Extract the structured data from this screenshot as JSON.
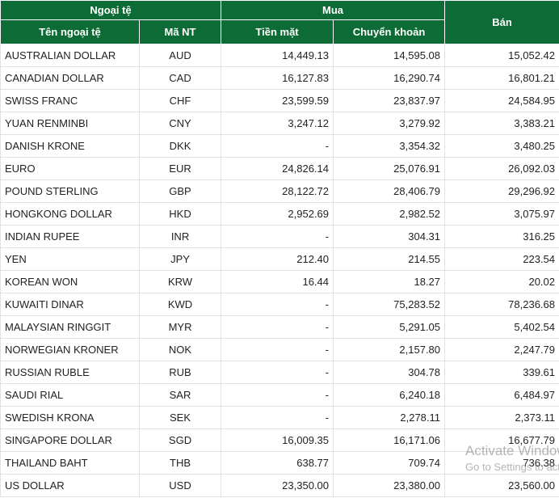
{
  "header": {
    "group_foreign": "Ngoại tệ",
    "group_buy": "Mua",
    "sell": "Bán",
    "name": "Tên ngoại tệ",
    "code": "Mã NT",
    "cash": "Tiền mặt",
    "transfer": "Chuyển khoản"
  },
  "table": {
    "rows": [
      [
        "AUSTRALIAN DOLLAR",
        "AUD",
        "14,449.13",
        "14,595.08",
        "15,052.42"
      ],
      [
        "CANADIAN DOLLAR",
        "CAD",
        "16,127.83",
        "16,290.74",
        "16,801.21"
      ],
      [
        "SWISS FRANC",
        "CHF",
        "23,599.59",
        "23,837.97",
        "24,584.95"
      ],
      [
        "YUAN RENMINBI",
        "CNY",
        "3,247.12",
        "3,279.92",
        "3,383.21"
      ],
      [
        "DANISH KRONE",
        "DKK",
        "-",
        "3,354.32",
        "3,480.25"
      ],
      [
        "EURO",
        "EUR",
        "24,826.14",
        "25,076.91",
        "26,092.03"
      ],
      [
        "POUND STERLING",
        "GBP",
        "28,122.72",
        "28,406.79",
        "29,296.92"
      ],
      [
        "HONGKONG DOLLAR",
        "HKD",
        "2,952.69",
        "2,982.52",
        "3,075.97"
      ],
      [
        "INDIAN RUPEE",
        "INR",
        "-",
        "304.31",
        "316.25"
      ],
      [
        "YEN",
        "JPY",
        "212.40",
        "214.55",
        "223.54"
      ],
      [
        "KOREAN WON",
        "KRW",
        "16.44",
        "18.27",
        "20.02"
      ],
      [
        "KUWAITI DINAR",
        "KWD",
        "-",
        "75,283.52",
        "78,236.68"
      ],
      [
        "MALAYSIAN RINGGIT",
        "MYR",
        "-",
        "5,291.05",
        "5,402.54"
      ],
      [
        "NORWEGIAN KRONER",
        "NOK",
        "-",
        "2,157.80",
        "2,247.79"
      ],
      [
        "RUSSIAN RUBLE",
        "RUB",
        "-",
        "304.78",
        "339.61"
      ],
      [
        "SAUDI RIAL",
        "SAR",
        "-",
        "6,240.18",
        "6,484.97"
      ],
      [
        "SWEDISH KRONA",
        "SEK",
        "-",
        "2,278.11",
        "2,373.11"
      ],
      [
        "SINGAPORE DOLLAR",
        "SGD",
        "16,009.35",
        "16,171.06",
        "16,677.79"
      ],
      [
        "THAILAND BAHT",
        "THB",
        "638.77",
        "709.74",
        "736.38"
      ],
      [
        "US DOLLAR",
        "USD",
        "23,350.00",
        "23,380.00",
        "23,560.00"
      ]
    ]
  },
  "watermark": {
    "title": "Activate Windows",
    "subtitle": "Go to Settings to activate Windows."
  }
}
